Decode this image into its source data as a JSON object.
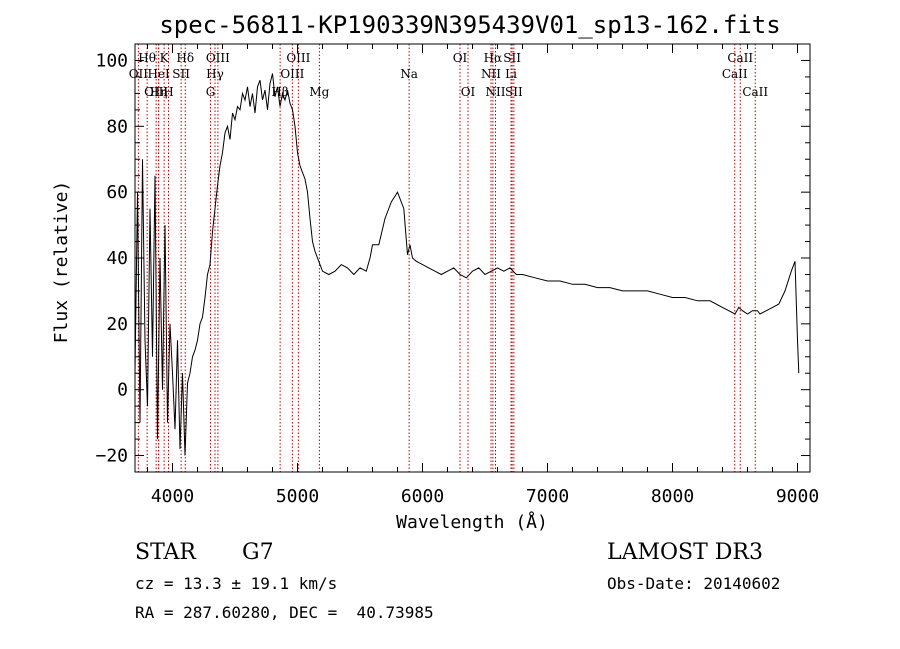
{
  "chart_data": {
    "type": "line",
    "title": "spec-56811-KP190339N395439V01_sp13-162.fits",
    "xlabel": "Wavelength (Å)",
    "ylabel": "Flux (relative)",
    "xlim": [
      3700,
      9100
    ],
    "ylim": [
      -25,
      105
    ],
    "xticks": [
      4000,
      5000,
      6000,
      7000,
      8000,
      9000
    ],
    "yticks": [
      -20,
      0,
      20,
      40,
      60,
      80,
      100
    ],
    "grid": false,
    "series": [
      {
        "name": "spectrum",
        "x": [
          3700,
          3720,
          3740,
          3760,
          3780,
          3800,
          3820,
          3840,
          3860,
          3880,
          3900,
          3920,
          3940,
          3960,
          3980,
          4000,
          4020,
          4040,
          4060,
          4080,
          4100,
          4120,
          4140,
          4160,
          4180,
          4200,
          4220,
          4240,
          4260,
          4280,
          4300,
          4320,
          4340,
          4360,
          4380,
          4400,
          4420,
          4440,
          4460,
          4480,
          4500,
          4520,
          4540,
          4560,
          4580,
          4600,
          4620,
          4640,
          4660,
          4680,
          4700,
          4720,
          4740,
          4760,
          4780,
          4800,
          4820,
          4840,
          4860,
          4880,
          4900,
          4920,
          4940,
          4960,
          4980,
          5000,
          5020,
          5040,
          5060,
          5080,
          5100,
          5120,
          5140,
          5160,
          5180,
          5200,
          5250,
          5300,
          5350,
          5400,
          5450,
          5500,
          5550,
          5580,
          5600,
          5650,
          5700,
          5750,
          5800,
          5850,
          5880,
          5900,
          5920,
          5950,
          6000,
          6050,
          6100,
          6150,
          6200,
          6250,
          6300,
          6350,
          6400,
          6450,
          6500,
          6550,
          6600,
          6650,
          6700,
          6750,
          6800,
          6900,
          7000,
          7100,
          7200,
          7300,
          7400,
          7500,
          7600,
          7700,
          7800,
          7900,
          8000,
          8100,
          8200,
          8300,
          8400,
          8500,
          8530,
          8560,
          8600,
          8640,
          8680,
          8700,
          8750,
          8800,
          8850,
          8900,
          8950,
          8980,
          9000,
          9010
        ],
        "y": [
          5,
          60,
          -10,
          70,
          15,
          -5,
          55,
          10,
          65,
          -15,
          40,
          0,
          50,
          -10,
          20,
          5,
          -12,
          15,
          -18,
          5,
          -20,
          2,
          5,
          10,
          12,
          15,
          20,
          22,
          28,
          35,
          38,
          48,
          55,
          62,
          68,
          72,
          78,
          80,
          76,
          84,
          82,
          86,
          85,
          90,
          88,
          92,
          86,
          90,
          84,
          92,
          94,
          88,
          91,
          85,
          93,
          96,
          89,
          92,
          86,
          90,
          88,
          91,
          87,
          85,
          80,
          72,
          68,
          66,
          64,
          60,
          52,
          45,
          42,
          40,
          38,
          36,
          35,
          36,
          38,
          37,
          35,
          37,
          36,
          40,
          44,
          44,
          52,
          57,
          60,
          55,
          41,
          44,
          40,
          39,
          38,
          37,
          36,
          35,
          36,
          37,
          35,
          34,
          36,
          37,
          35,
          36,
          37,
          36,
          37,
          35,
          35,
          34,
          33,
          33,
          32,
          32,
          31,
          31,
          30,
          30,
          30,
          29,
          28,
          28,
          27,
          27,
          25,
          23,
          25,
          24,
          23,
          24,
          24,
          23,
          24,
          25,
          26,
          30,
          36,
          39,
          15,
          5
        ]
      }
    ],
    "lines": [
      {
        "label": "Hβ",
        "x": 4861,
        "row": 3
      },
      {
        "label": "OII",
        "x": 3727,
        "row": 2
      },
      {
        "label": "OIII",
        "x": 3869,
        "row": 3
      },
      {
        "label": "Hη",
        "x": 3889,
        "row": 3
      },
      {
        "label": "Hθ",
        "x": 3797,
        "row": 1
      },
      {
        "label": "HeI",
        "x": 3889,
        "row": 2
      },
      {
        "label": "K",
        "x": 3933,
        "row": 1
      },
      {
        "label": "SII",
        "x": 4069,
        "row": 2
      },
      {
        "label": "H",
        "x": 3968,
        "row": 3
      },
      {
        "label": "Hδ",
        "x": 4102,
        "row": 1
      },
      {
        "label": "OIII",
        "x": 4363,
        "row": 1
      },
      {
        "label": "Hγ",
        "x": 4340,
        "row": 2
      },
      {
        "label": "G",
        "x": 4304,
        "row": 3
      },
      {
        "label": "OIII",
        "x": 5007,
        "row": 1
      },
      {
        "label": "OIII",
        "x": 4959,
        "row": 2
      },
      {
        "label": "Mg",
        "x": 5175,
        "row": 3
      },
      {
        "label": "Na",
        "x": 5893,
        "row": 2
      },
      {
        "label": "OI",
        "x": 6300,
        "row": 1
      },
      {
        "label": "OI",
        "x": 6364,
        "row": 3
      },
      {
        "label": "Hα",
        "x": 6563,
        "row": 1
      },
      {
        "label": "SII",
        "x": 6717,
        "row": 1
      },
      {
        "label": "NII",
        "x": 6548,
        "row": 2
      },
      {
        "label": "Li",
        "x": 6708,
        "row": 2
      },
      {
        "label": "NII",
        "x": 6584,
        "row": 3
      },
      {
        "label": "SII",
        "x": 6731,
        "row": 3
      },
      {
        "label": "CaII",
        "x": 8542,
        "row": 1
      },
      {
        "label": "CaII",
        "x": 8498,
        "row": 2
      },
      {
        "label": "CaII",
        "x": 8662,
        "row": 3
      }
    ]
  },
  "info": {
    "class": "STAR",
    "subclass": "G7",
    "survey": "LAMOST DR3",
    "redshift": "cz = 13.3 ± 19.1 km/s",
    "obs_date": "Obs-Date: 20140602",
    "coords": "RA = 287.60280, DEC =  40.73985"
  }
}
